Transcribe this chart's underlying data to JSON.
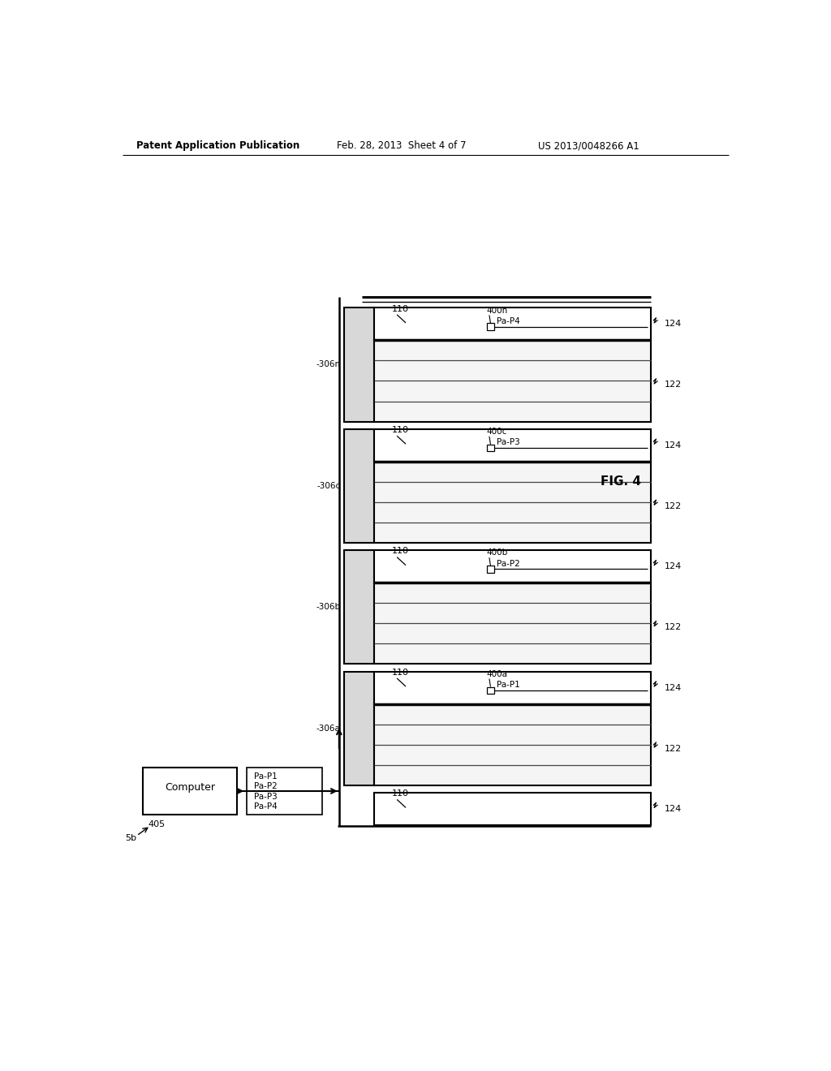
{
  "bg_color": "#ffffff",
  "header_left": "Patent Application Publication",
  "header_mid": "Feb. 28, 2013  Sheet 4 of 7",
  "header_right": "US 2013/0048266 A1",
  "fig_label": "FIG. 4",
  "slots": [
    {
      "label_400": "400a",
      "label_Pa": "Pa-P1",
      "label_306": "306a"
    },
    {
      "label_400": "400b",
      "label_Pa": "Pa-P2",
      "label_306": "306b"
    },
    {
      "label_400": "400c",
      "label_Pa": "Pa-P3",
      "label_306": "306c"
    },
    {
      "label_400": "400n",
      "label_Pa": "Pa-P4",
      "label_306": "306n"
    }
  ],
  "computer_label": "Computer",
  "box_label": "405",
  "arrow_label": "5b",
  "data_labels": [
    "Pa-P1",
    "Pa-P2",
    "Pa-P3",
    "Pa-P4"
  ],
  "label_110": "110",
  "label_122": "122",
  "label_124": "124"
}
